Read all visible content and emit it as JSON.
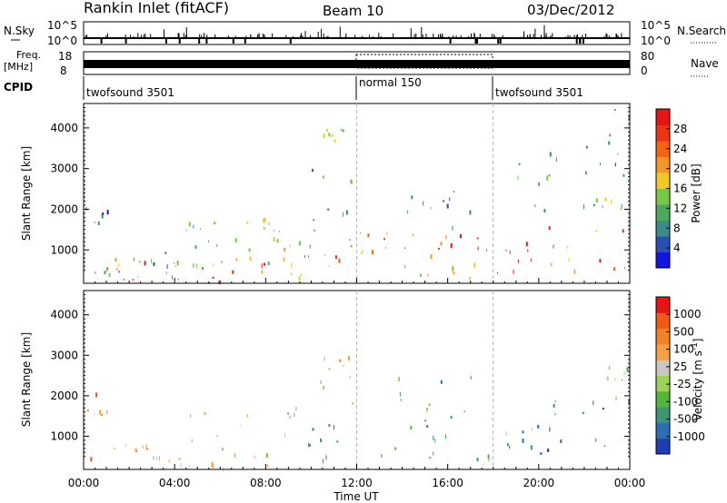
{
  "header": {
    "station": "Rankin Inlet (fitACF)",
    "beam": "Beam 10",
    "date": "03/Dec/2012"
  },
  "status_panels": {
    "nsky_label": "N.Sky",
    "nsky_ticks": [
      "10^5",
      "10^0"
    ],
    "nsearch_label": "N.Search",
    "nsearch_ticks": [
      "10^5",
      "10^0"
    ],
    "freq_label": "Freq.",
    "freq_unit": "[MHz]",
    "freq_ticks": [
      "18",
      "8"
    ],
    "nave_label": "Nave",
    "nave_ticks": [
      "80",
      "0"
    ],
    "cpid_label": "CPID",
    "cpid_modes": [
      {
        "name": "twofsound 3501",
        "start_hour": 0,
        "end_hour": 12
      },
      {
        "name": "normal 150",
        "start_hour": 12,
        "end_hour": 18
      },
      {
        "name": "twofsound 3501",
        "start_hour": 18,
        "end_hour": 24
      }
    ]
  },
  "power_colorbar": {
    "label": "Power [dB]",
    "ticks": [
      "28",
      "24",
      "20",
      "16",
      "12",
      "8",
      "4"
    ],
    "colors": [
      "#1414e6",
      "#2850b4",
      "#3c8c8c",
      "#4fa860",
      "#78c846",
      "#f0c828",
      "#f59628",
      "#f56414",
      "#f03214",
      "#e61414"
    ]
  },
  "velocity_colorbar": {
    "label": "Velocity [m s",
    "label_sup": "-1",
    "label_end": "]",
    "ticks": [
      "1000",
      "500",
      "100",
      "25",
      "-25",
      "-100",
      "-500",
      "-1000"
    ],
    "colors": [
      "#1e3cb4",
      "#2d6eb4",
      "#3c9678",
      "#55b43c",
      "#9bd25a",
      "#c8c8c0",
      "#f5a046",
      "#f08228",
      "#f05a14",
      "#e61414"
    ]
  },
  "chart_data": [
    {
      "type": "heatmap",
      "quantity": "Power",
      "ylabel": "Slant Range [km]",
      "xlabel": "",
      "x_range_hours": [
        0,
        24
      ],
      "ylim": [
        180,
        4600
      ],
      "yticks": [
        1000,
        2000,
        3000,
        4000
      ],
      "colorbar_range_db": [
        0,
        32
      ],
      "regions": [
        {
          "x": [
            0.1,
            1.1
          ],
          "y": [
            1500,
            2100
          ],
          "level": 0.2
        },
        {
          "x": [
            0,
            3
          ],
          "y": [
            180,
            900
          ],
          "level": 0.4
        },
        {
          "x": [
            1,
            2.8
          ],
          "y": [
            200,
            800
          ],
          "level": 0.8
        },
        {
          "x": [
            2.8,
            4
          ],
          "y": [
            300,
            1000
          ],
          "level": 0.35
        },
        {
          "x": [
            4,
            6
          ],
          "y": [
            1000,
            1700
          ],
          "level": 0.25
        },
        {
          "x": [
            4,
            8
          ],
          "y": [
            200,
            900
          ],
          "level": 0.45
        },
        {
          "x": [
            5.5,
            8
          ],
          "y": [
            200,
            800
          ],
          "level": 0.88
        },
        {
          "x": [
            6,
            9.5
          ],
          "y": [
            1000,
            1500
          ],
          "level": 0.5
        },
        {
          "x": [
            6.5,
            8.5
          ],
          "y": [
            1500,
            1800
          ],
          "level": 0.55
        },
        {
          "x": [
            8,
            9.8
          ],
          "y": [
            300,
            900
          ],
          "level": 0.4
        },
        {
          "x": [
            9.8,
            11.8
          ],
          "y": [
            400,
            1400
          ],
          "level": 0.75
        },
        {
          "x": [
            10,
            12
          ],
          "y": [
            1500,
            3000
          ],
          "level": 0.3
        },
        {
          "x": [
            10.5,
            11.5
          ],
          "y": [
            3600,
            4050
          ],
          "level": 0.45
        },
        {
          "x": [
            12,
            13.5
          ],
          "y": [
            800,
            1800
          ],
          "level": 0.7
        },
        {
          "x": [
            13,
            18
          ],
          "y": [
            500,
            1400
          ],
          "level": 0.8
        },
        {
          "x": [
            14,
            17.5
          ],
          "y": [
            300,
            700
          ],
          "level": 0.6
        },
        {
          "x": [
            13.8,
            17
          ],
          "y": [
            1500,
            2500
          ],
          "level": 0.3
        },
        {
          "x": [
            18,
            20
          ],
          "y": [
            400,
            1300
          ],
          "level": 0.95
        },
        {
          "x": [
            19,
            21
          ],
          "y": [
            2000,
            3500
          ],
          "level": 0.3
        },
        {
          "x": [
            20,
            24
          ],
          "y": [
            500,
            2000
          ],
          "level": 0.75
        },
        {
          "x": [
            21.5,
            24
          ],
          "y": [
            1800,
            2400
          ],
          "level": 0.4
        },
        {
          "x": [
            22,
            24
          ],
          "y": [
            2800,
            4500
          ],
          "level": 0.2
        }
      ]
    },
    {
      "type": "heatmap",
      "quantity": "Velocity",
      "ylabel": "Slant Range [km]",
      "xlabel": "Time UT",
      "x_range_hours": [
        0,
        24
      ],
      "xticks": [
        "00:00",
        "04:00",
        "08:00",
        "12:00",
        "16:00",
        "20:00",
        "00:00"
      ],
      "ylim": [
        180,
        4600
      ],
      "yticks": [
        1000,
        2000,
        3000,
        4000
      ],
      "colorbar_range_ms": [
        -1000,
        1000
      ],
      "regions": [
        {
          "x": [
            0.1,
            1.1
          ],
          "y": [
            1500,
            2100
          ],
          "level": 0.7
        },
        {
          "x": [
            0,
            3
          ],
          "y": [
            180,
            900
          ],
          "level": 0.65
        },
        {
          "x": [
            3,
            5
          ],
          "y": [
            300,
            1200
          ],
          "level": 0.55
        },
        {
          "x": [
            4.5,
            9.5
          ],
          "y": [
            1000,
            1800
          ],
          "level": 0.5
        },
        {
          "x": [
            5.5,
            8.5
          ],
          "y": [
            200,
            900
          ],
          "level": 0.62
        },
        {
          "x": [
            9.8,
            12
          ],
          "y": [
            300,
            1400
          ],
          "level": 0.3
        },
        {
          "x": [
            10,
            12
          ],
          "y": [
            1500,
            3000
          ],
          "level": 0.6
        },
        {
          "x": [
            12,
            18
          ],
          "y": [
            300,
            1500
          ],
          "level": 0.28
        },
        {
          "x": [
            13.8,
            17
          ],
          "y": [
            1500,
            2500
          ],
          "level": 0.35
        },
        {
          "x": [
            18,
            20
          ],
          "y": [
            400,
            1300
          ],
          "level": 0.3
        },
        {
          "x": [
            20,
            24
          ],
          "y": [
            500,
            2200
          ],
          "level": 0.22
        },
        {
          "x": [
            22.5,
            24
          ],
          "y": [
            2400,
            2800
          ],
          "level": 0.5
        }
      ]
    }
  ]
}
